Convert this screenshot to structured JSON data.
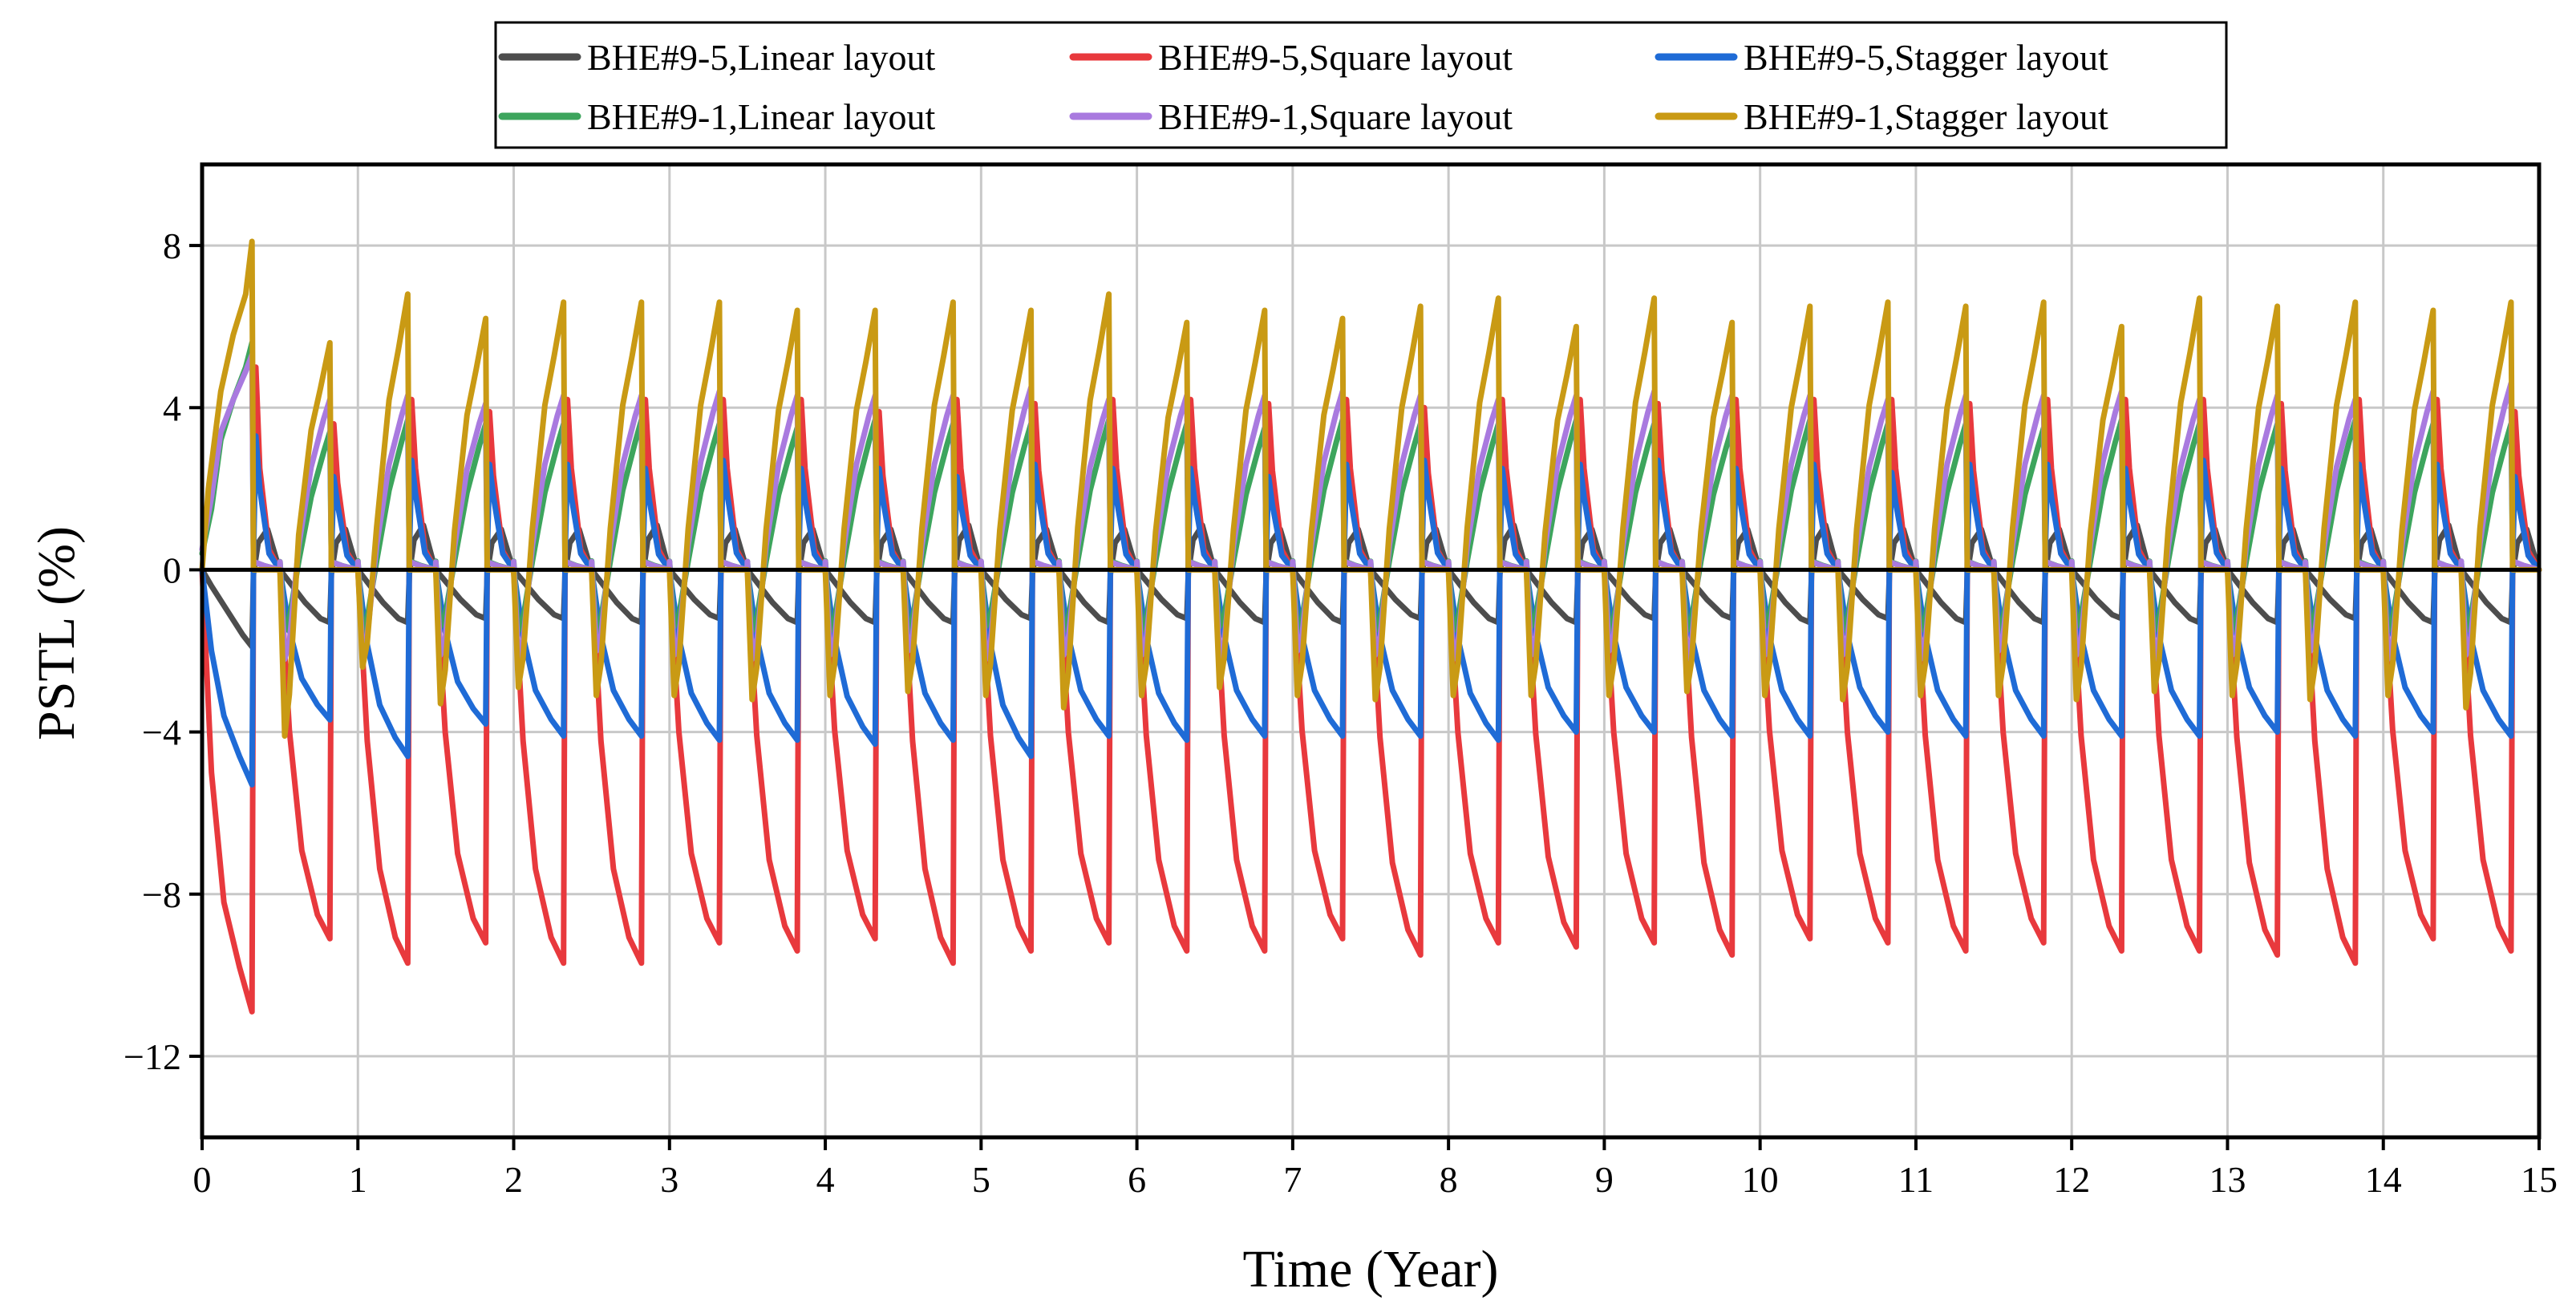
{
  "chart_data": {
    "type": "line",
    "title": "",
    "xlabel": "Time (Year)",
    "ylabel": "PSTL (%)",
    "xlim": [
      0,
      15
    ],
    "ylim": [
      -14,
      10
    ],
    "xticks": [
      0,
      1,
      2,
      3,
      4,
      5,
      6,
      7,
      8,
      9,
      10,
      11,
      12,
      13,
      14,
      15
    ],
    "yticks": [
      8,
      4,
      0,
      -4,
      -8,
      -12
    ],
    "ytick_labels": [
      "8",
      "4",
      "0",
      "−4",
      "−8",
      "−12"
    ],
    "grid": true,
    "legend_position": "top-center",
    "period_years": 0.5,
    "series": [
      {
        "name": "BHE#9-5,Linear layout",
        "color": "#4d4d4d",
        "cycle_shape": [
          [
            0,
            0
          ],
          [
            0.06,
            -0.3
          ],
          [
            0.16,
            -0.8
          ],
          [
            0.26,
            -1.2
          ],
          [
            0.32,
            -1.3
          ],
          [
            0.33,
            -0.1
          ],
          [
            0.36,
            0.6
          ],
          [
            0.42,
            0.9
          ],
          [
            0.48,
            0.2
          ],
          [
            0.499,
            0
          ]
        ],
        "first_cycle_shape": [
          [
            0,
            0
          ],
          [
            0.06,
            -0.4
          ],
          [
            0.16,
            -1.0
          ],
          [
            0.26,
            -1.6
          ],
          [
            0.32,
            -1.9
          ],
          [
            0.33,
            -0.1
          ],
          [
            0.36,
            0.6
          ],
          [
            0.42,
            0.9
          ],
          [
            0.48,
            0.2
          ],
          [
            0.499,
            0
          ]
        ],
        "peak_min": [
          -1.9,
          -1.3,
          -1.3,
          -1.2,
          -1.2,
          -1.3,
          -1.2,
          -1.3,
          -1.3,
          -1.3,
          -1.2,
          -1.3,
          -1.2,
          -1.3,
          -1.3,
          -1.2,
          -1.3,
          -1.3,
          -1.2,
          -1.2,
          -1.3,
          -1.2,
          -1.3,
          -1.3,
          -1.2,
          -1.3,
          -1.3,
          -1.2,
          -1.3,
          -1.3
        ],
        "peak_max": [
          1.0,
          1.0,
          1.1,
          1.0,
          1.0,
          1.1,
          1.0,
          1.0,
          1.0,
          1.1,
          1.0,
          1.0,
          1.1,
          1.0,
          1.0,
          1.0,
          1.1,
          1.0,
          1.0,
          1.0,
          1.1,
          1.0,
          1.0,
          1.0,
          1.1,
          1.0,
          1.0,
          1.0,
          1.1,
          1.0
        ]
      },
      {
        "name": "BHE#9-5,Square layout",
        "color": "#e8393d",
        "cycle_shape": [
          [
            0,
            0
          ],
          [
            0.06,
            -4.0
          ],
          [
            0.14,
            -7.0
          ],
          [
            0.24,
            -8.6
          ],
          [
            0.32,
            -9.2
          ],
          [
            0.33,
            0.5
          ],
          [
            0.345,
            4.2
          ],
          [
            0.37,
            2.5
          ],
          [
            0.43,
            0.5
          ],
          [
            0.499,
            0
          ]
        ],
        "first_cycle_shape": [
          [
            0,
            0
          ],
          [
            0.06,
            -5.0
          ],
          [
            0.14,
            -8.2
          ],
          [
            0.24,
            -9.8
          ],
          [
            0.32,
            -10.9
          ],
          [
            0.33,
            0.5
          ],
          [
            0.345,
            5.0
          ],
          [
            0.37,
            2.5
          ],
          [
            0.43,
            0.5
          ],
          [
            0.499,
            0
          ]
        ],
        "peak_min": [
          -10.9,
          -9.1,
          -9.7,
          -9.2,
          -9.7,
          -9.7,
          -9.2,
          -9.4,
          -9.1,
          -9.7,
          -9.4,
          -9.2,
          -9.4,
          -9.4,
          -9.1,
          -9.5,
          -9.2,
          -9.3,
          -9.2,
          -9.5,
          -9.1,
          -9.2,
          -9.4,
          -9.2,
          -9.4,
          -9.4,
          -9.5,
          -9.7,
          -9.1,
          -9.4
        ],
        "peak_max": [
          5.0,
          3.6,
          4.2,
          3.9,
          4.2,
          4.2,
          4.2,
          4.2,
          3.9,
          4.2,
          4.1,
          4.2,
          4.2,
          4.1,
          4.2,
          4.0,
          4.2,
          4.2,
          4.1,
          4.2,
          4.2,
          4.2,
          4.1,
          4.2,
          4.2,
          4.2,
          4.1,
          4.2,
          4.2,
          3.9
        ]
      },
      {
        "name": "BHE#9-5,Stagger layout",
        "color": "#1f6bd6",
        "cycle_shape": [
          [
            0,
            0
          ],
          [
            0.06,
            -1.6
          ],
          [
            0.14,
            -2.9
          ],
          [
            0.24,
            -3.6
          ],
          [
            0.32,
            -4.0
          ],
          [
            0.33,
            0.3
          ],
          [
            0.345,
            2.6
          ],
          [
            0.37,
            1.8
          ],
          [
            0.43,
            0.4
          ],
          [
            0.499,
            0
          ]
        ],
        "first_cycle_shape": [
          [
            0,
            0
          ],
          [
            0.06,
            -2.0
          ],
          [
            0.14,
            -3.6
          ],
          [
            0.24,
            -4.6
          ],
          [
            0.32,
            -5.3
          ],
          [
            0.33,
            0.3
          ],
          [
            0.345,
            3.3
          ],
          [
            0.37,
            2.0
          ],
          [
            0.43,
            0.4
          ],
          [
            0.499,
            0
          ]
        ],
        "peak_min": [
          -5.3,
          -3.7,
          -4.6,
          -3.8,
          -4.1,
          -4.1,
          -4.2,
          -4.2,
          -4.3,
          -4.2,
          -4.6,
          -4.1,
          -4.2,
          -4.1,
          -4.1,
          -4.1,
          -4.2,
          -4.0,
          -4.0,
          -4.1,
          -4.1,
          -4.0,
          -4.1,
          -4.1,
          -4.1,
          -4.1,
          -4.0,
          -4.1,
          -4.0,
          -4.1
        ],
        "peak_max": [
          3.3,
          2.3,
          2.7,
          2.6,
          2.6,
          2.5,
          2.7,
          2.5,
          2.5,
          2.3,
          2.6,
          2.5,
          2.5,
          2.3,
          2.6,
          2.7,
          2.5,
          2.6,
          2.7,
          2.5,
          2.6,
          2.4,
          2.6,
          2.6,
          2.5,
          2.7,
          2.5,
          2.6,
          2.6,
          2.3
        ]
      },
      {
        "name": "BHE#9-1,Linear layout",
        "color": "#3da55d",
        "cycle_shape": [
          [
            0,
            0.2
          ],
          [
            0.03,
            -1.5
          ],
          [
            0.06,
            -1.2
          ],
          [
            0.12,
            0.2
          ],
          [
            0.2,
            1.8
          ],
          [
            0.28,
            2.9
          ],
          [
            0.32,
            3.4
          ],
          [
            0.33,
            0.2
          ],
          [
            0.4,
            0.1
          ],
          [
            0.499,
            0
          ]
        ],
        "first_cycle_shape": [
          [
            0,
            0.4
          ],
          [
            0.06,
            1.5
          ],
          [
            0.12,
            3.2
          ],
          [
            0.2,
            4.2
          ],
          [
            0.28,
            5.0
          ],
          [
            0.32,
            5.6
          ],
          [
            0.33,
            0.2
          ],
          [
            0.4,
            0.1
          ],
          [
            0.499,
            0
          ]
        ],
        "peak_min": [
          0,
          -1.5,
          -1.5,
          -1.4,
          -1.5,
          -1.5,
          -1.4,
          -1.5,
          -1.5,
          -1.5,
          -1.4,
          -1.5,
          -1.5,
          -1.4,
          -1.5,
          -1.5,
          -1.5,
          -1.4,
          -1.5,
          -1.5,
          -1.4,
          -1.5,
          -1.5,
          -1.5,
          -1.4,
          -1.5,
          -1.5,
          -1.4,
          -1.5,
          -1.5
        ],
        "peak_max": [
          5.6,
          3.4,
          3.7,
          3.6,
          3.6,
          3.7,
          3.6,
          3.5,
          3.7,
          3.6,
          3.6,
          3.7,
          3.6,
          3.5,
          3.7,
          3.6,
          3.6,
          3.7,
          3.6,
          3.5,
          3.7,
          3.6,
          3.6,
          3.5,
          3.7,
          3.6,
          3.6,
          3.7,
          3.6,
          3.6
        ]
      },
      {
        "name": "BHE#9-1,Square layout",
        "color": "#a97adf",
        "cycle_shape": [
          [
            0,
            0.2
          ],
          [
            0.03,
            -2.2
          ],
          [
            0.06,
            -1.8
          ],
          [
            0.12,
            0.6
          ],
          [
            0.2,
            2.6
          ],
          [
            0.28,
            3.8
          ],
          [
            0.32,
            4.3
          ],
          [
            0.33,
            0.2
          ],
          [
            0.4,
            0.1
          ],
          [
            0.499,
            0
          ]
        ],
        "first_cycle_shape": [
          [
            0,
            0.5
          ],
          [
            0.06,
            1.8
          ],
          [
            0.12,
            3.4
          ],
          [
            0.2,
            4.2
          ],
          [
            0.28,
            4.9
          ],
          [
            0.32,
            5.3
          ],
          [
            0.33,
            0.2
          ],
          [
            0.4,
            0.1
          ],
          [
            0.499,
            0
          ]
        ],
        "peak_min": [
          0,
          -2.2,
          -2.0,
          -2.1,
          -2.2,
          -2.0,
          -2.1,
          -2.2,
          -2.1,
          -2.0,
          -2.2,
          -2.1,
          -2.1,
          -2.2,
          -2.0,
          -2.1,
          -2.2,
          -2.1,
          -2.0,
          -2.2,
          -2.1,
          -2.1,
          -2.2,
          -2.0,
          -2.1,
          -2.2,
          -2.1,
          -2.0,
          -2.2,
          -2.1
        ],
        "peak_max": [
          5.3,
          4.2,
          4.3,
          4.1,
          4.3,
          4.3,
          4.4,
          4.3,
          4.3,
          4.3,
          4.5,
          4.2,
          4.3,
          4.3,
          4.4,
          4.3,
          4.2,
          4.3,
          4.4,
          4.3,
          4.3,
          4.2,
          4.3,
          4.3,
          4.4,
          4.2,
          4.3,
          4.2,
          4.4,
          4.6
        ]
      },
      {
        "name": "BHE#9-1,Stagger layout",
        "color": "#c99a14",
        "cycle_shape": [
          [
            0,
            0
          ],
          [
            0.03,
            -3.2
          ],
          [
            0.06,
            -2.4
          ],
          [
            0.12,
            1.0
          ],
          [
            0.2,
            4.0
          ],
          [
            0.26,
            5.2
          ],
          [
            0.32,
            6.5
          ],
          [
            0.33,
            0
          ],
          [
            0.499,
            0
          ]
        ],
        "first_cycle_shape": [
          [
            0,
            0
          ],
          [
            0.04,
            2.0
          ],
          [
            0.12,
            4.4
          ],
          [
            0.2,
            5.8
          ],
          [
            0.28,
            6.8
          ],
          [
            0.32,
            8.1
          ],
          [
            0.33,
            0
          ],
          [
            0.499,
            0
          ]
        ],
        "peak_min": [
          0,
          -4.1,
          -2.4,
          -3.3,
          -2.9,
          -3.1,
          -3.1,
          -3.2,
          -3.1,
          -3.0,
          -3.1,
          -3.4,
          -3.1,
          -2.9,
          -3.1,
          -3.2,
          -3.1,
          -3.1,
          -3.1,
          -3.0,
          -3.1,
          -3.2,
          -3.1,
          -3.1,
          -3.2,
          -3.0,
          -3.1,
          -3.2,
          -3.1,
          -3.4
        ],
        "peak_max": [
          8.1,
          5.6,
          6.8,
          6.2,
          6.6,
          6.6,
          6.6,
          6.4,
          6.4,
          6.6,
          6.4,
          6.8,
          6.1,
          6.4,
          6.2,
          6.5,
          6.7,
          6.0,
          6.7,
          6.1,
          6.5,
          6.6,
          6.5,
          6.6,
          6.0,
          6.7,
          6.5,
          6.6,
          6.4,
          6.6
        ]
      }
    ],
    "zero_line_color": "#000000"
  }
}
